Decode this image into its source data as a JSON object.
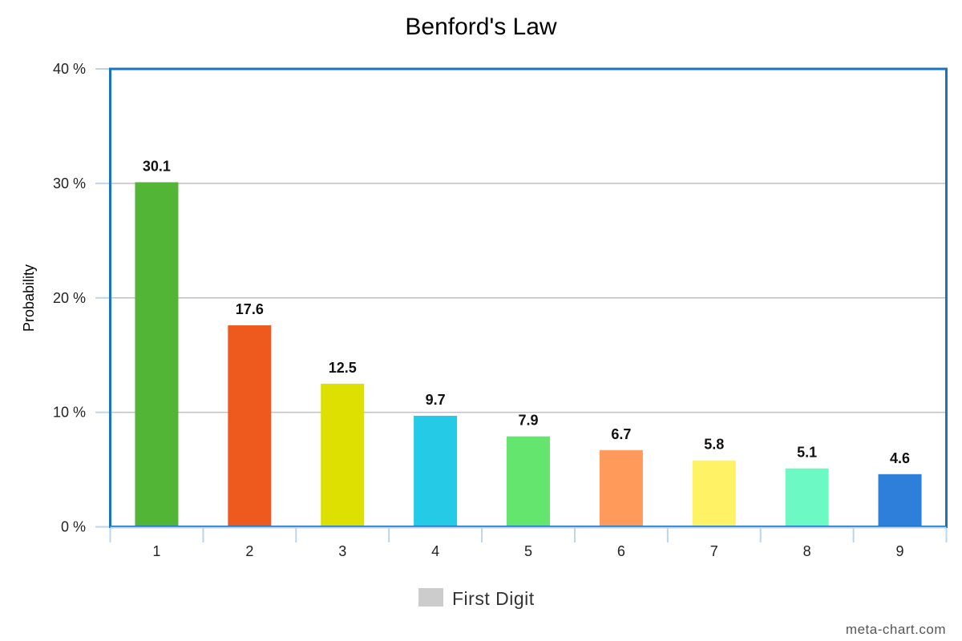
{
  "chart_data": {
    "type": "bar",
    "title": "Benford's Law",
    "xlabel": "",
    "ylabel": "Probability",
    "categories": [
      "1",
      "2",
      "3",
      "4",
      "5",
      "6",
      "7",
      "8",
      "9"
    ],
    "series": [
      {
        "name": "First Digit",
        "values": [
          30.1,
          17.6,
          12.5,
          9.7,
          7.9,
          6.7,
          5.8,
          5.1,
          4.6
        ],
        "data_labels": [
          "30.1",
          "17.6",
          "12.5",
          "9.7",
          "7.9",
          "6.7",
          "5.8",
          "5.1",
          "4.6"
        ]
      }
    ],
    "bar_colors": [
      "#52b535",
      "#ee5a1e",
      "#dde000",
      "#25cbe6",
      "#64e56e",
      "#ff9a5a",
      "#fff365",
      "#6cf9c4",
      "#2e7fd9"
    ],
    "ylim": [
      0,
      40
    ],
    "yticks": [
      0,
      10,
      20,
      30,
      40
    ],
    "ytick_labels": [
      "0 %",
      "10 %",
      "20 %",
      "30 %",
      "40 %"
    ],
    "grid": true,
    "legend": {
      "position": "bottom-center",
      "entries": [
        {
          "label": "First Digit",
          "color": "#cccccc"
        }
      ]
    },
    "frame_color": "#1a73bf"
  },
  "credit": "meta-chart.com"
}
